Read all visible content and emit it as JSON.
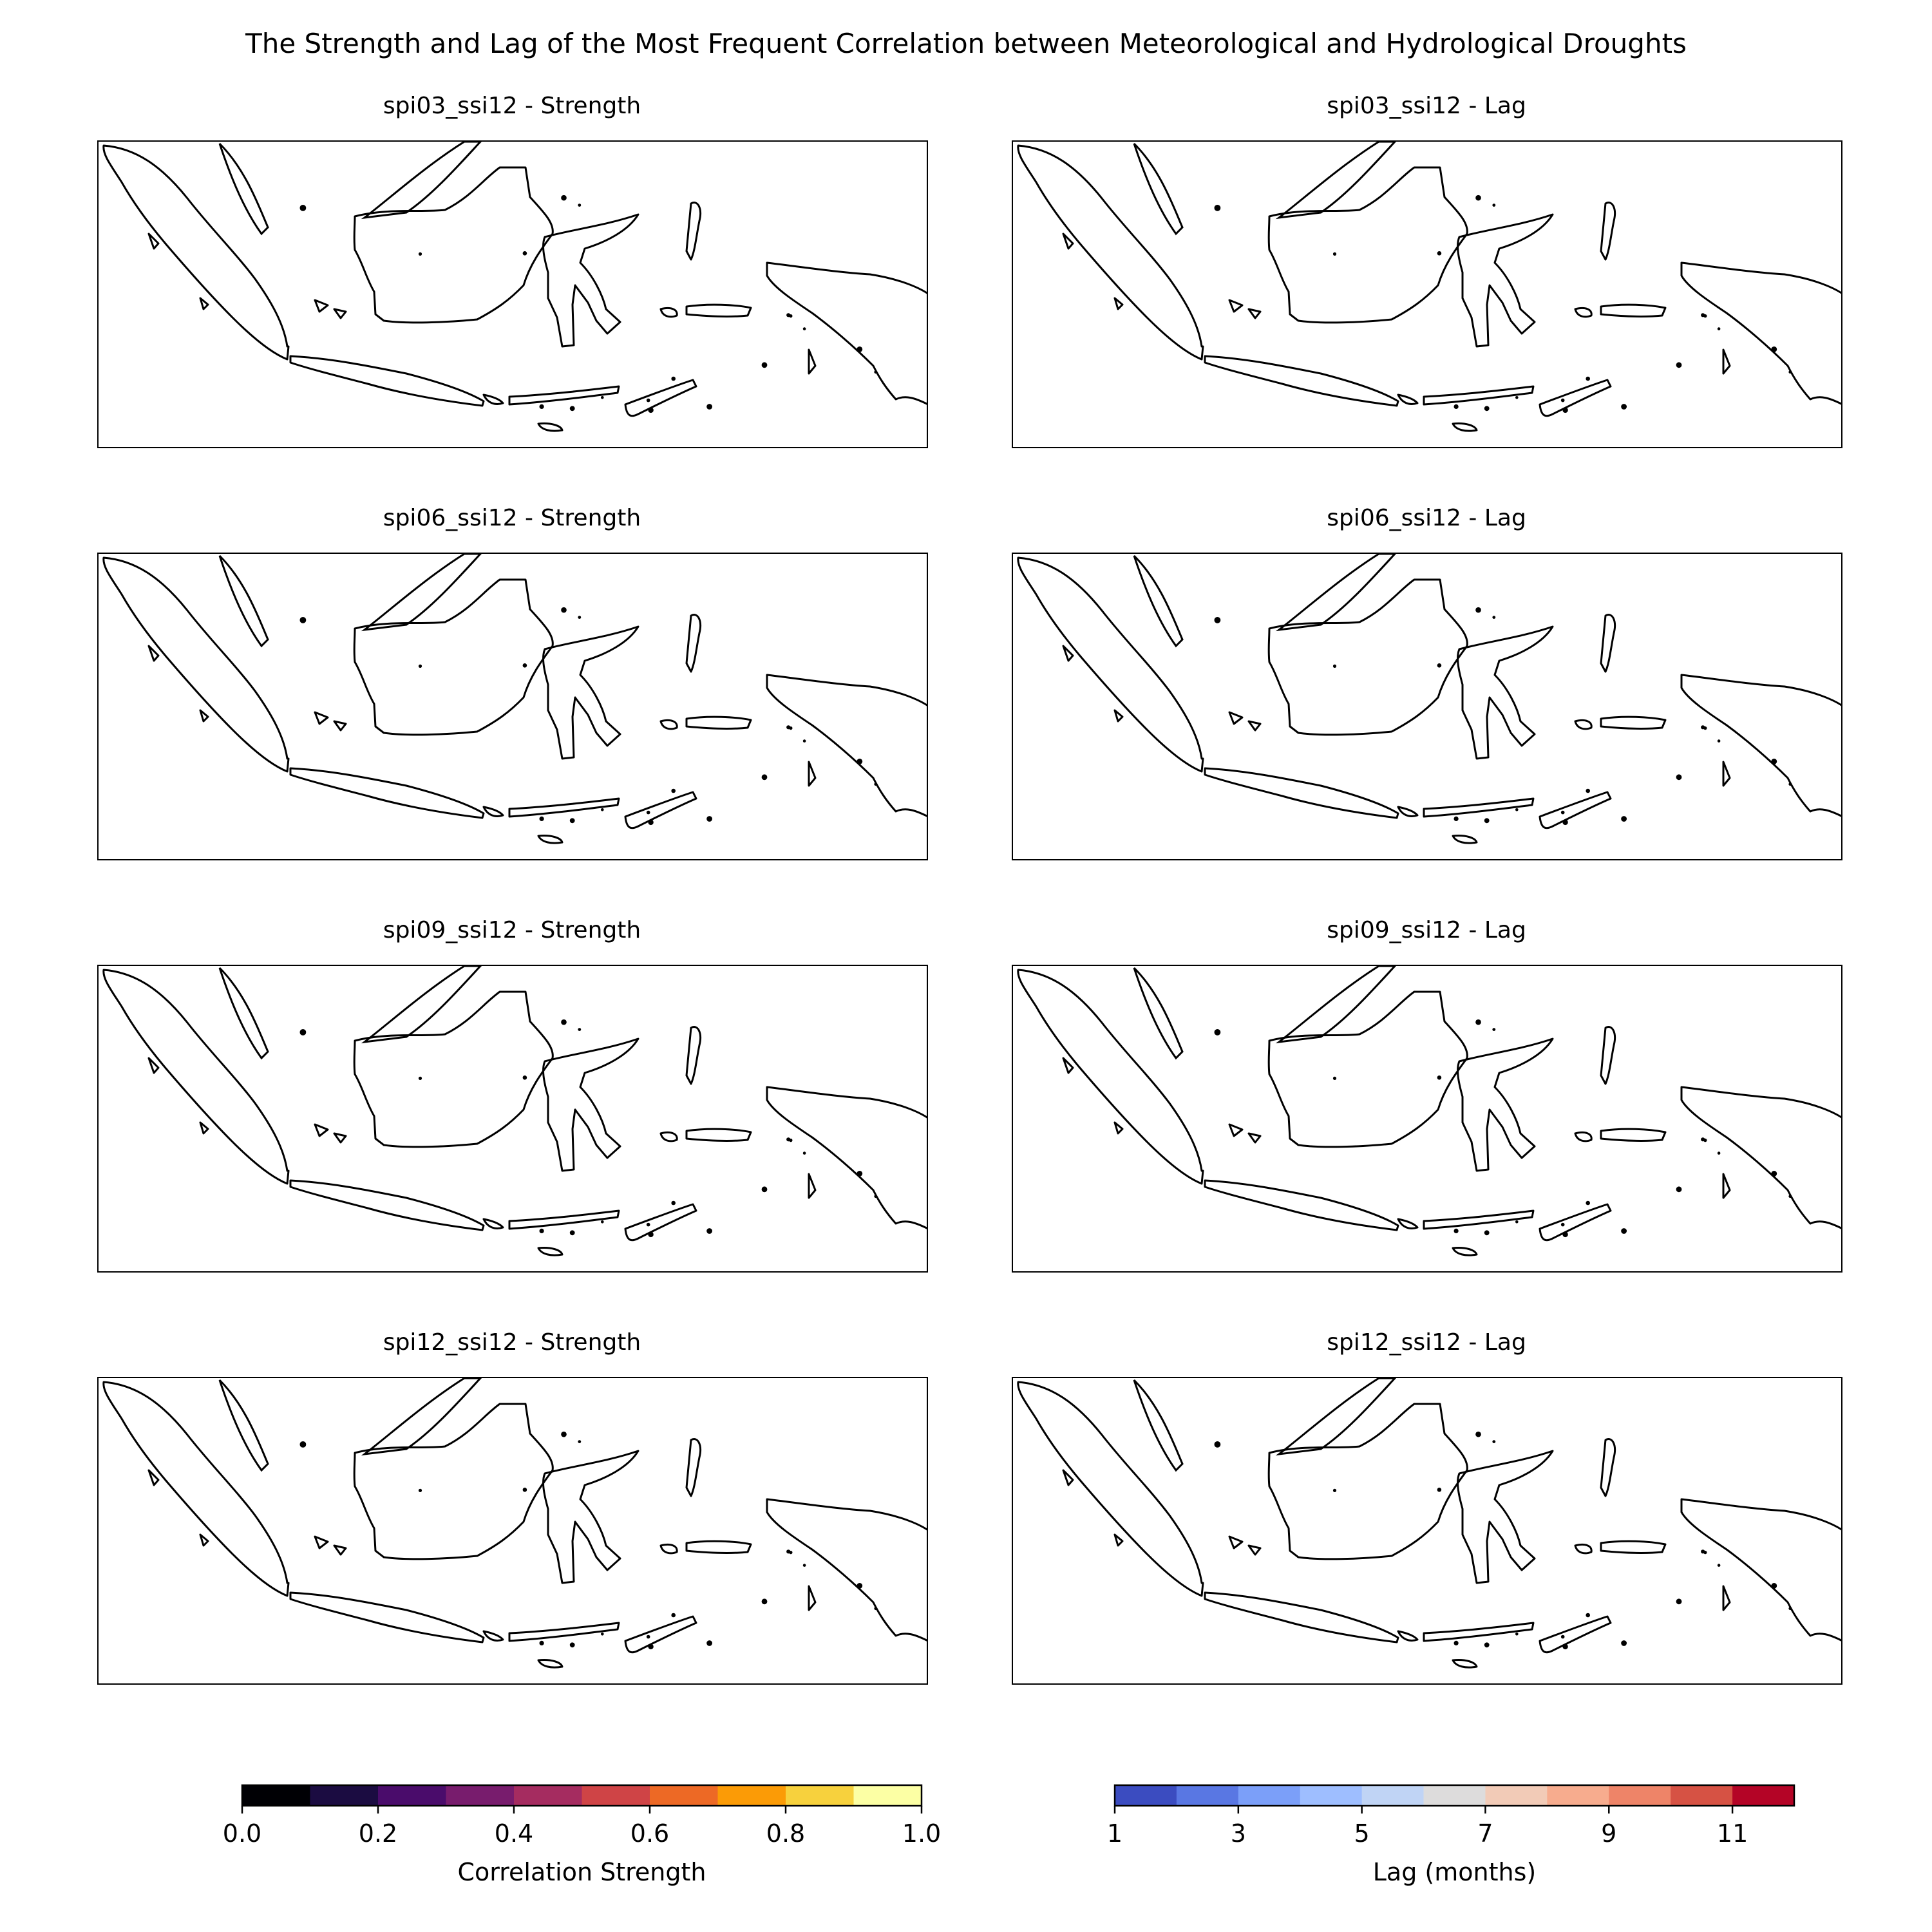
{
  "figure": {
    "title": "The Strength and Lag of the Most Frequent Correlation between Meteorological and Hydrological Droughts"
  },
  "panels": [
    {
      "id": "spi03-strength",
      "title": "spi03_ssi12 - Strength",
      "kind": "strength",
      "variant": 0
    },
    {
      "id": "spi03-lag",
      "title": "spi03_ssi12 - Lag",
      "kind": "lag",
      "variant": 0
    },
    {
      "id": "spi06-strength",
      "title": "spi06_ssi12 - Strength",
      "kind": "strength",
      "variant": 1
    },
    {
      "id": "spi06-lag",
      "title": "spi06_ssi12 - Lag",
      "kind": "lag",
      "variant": 1
    },
    {
      "id": "spi09-strength",
      "title": "spi09_ssi12 - Strength",
      "kind": "strength",
      "variant": 2
    },
    {
      "id": "spi09-lag",
      "title": "spi09_ssi12 - Lag",
      "kind": "lag",
      "variant": 2
    },
    {
      "id": "spi12-strength",
      "title": "spi12_ssi12 - Strength",
      "kind": "strength",
      "variant": 3
    },
    {
      "id": "spi12-lag",
      "title": "spi12_ssi12 - Lag",
      "kind": "lag",
      "variant": 3
    }
  ],
  "colorbars": {
    "strength": {
      "label": "Correlation Strength",
      "range": [
        0.0,
        1.0
      ],
      "ticks": [
        "0.0",
        "0.2",
        "0.4",
        "0.6",
        "0.8",
        "1.0"
      ],
      "tick_values": [
        0.0,
        0.2,
        0.4,
        0.6,
        0.8,
        1.0
      ],
      "colors": [
        "#000004",
        "#1b0c41",
        "#4a0c6b",
        "#781c6d",
        "#a52c60",
        "#cf4446",
        "#ed6925",
        "#fb9b06",
        "#f7d13d",
        "#fcffa4"
      ]
    },
    "lag": {
      "label": "Lag (months)",
      "range": [
        1,
        12
      ],
      "ticks": [
        "1",
        "3",
        "5",
        "7",
        "9",
        "11"
      ],
      "tick_values": [
        1,
        3,
        5,
        7,
        9,
        11
      ],
      "colors": [
        "#3b4cc0",
        "#5977e3",
        "#7b9ff9",
        "#9ebeff",
        "#c0d4f5",
        "#dddcdc",
        "#f2cbb7",
        "#f7ac8e",
        "#ee8468",
        "#d65244",
        "#b40426"
      ]
    }
  }
}
